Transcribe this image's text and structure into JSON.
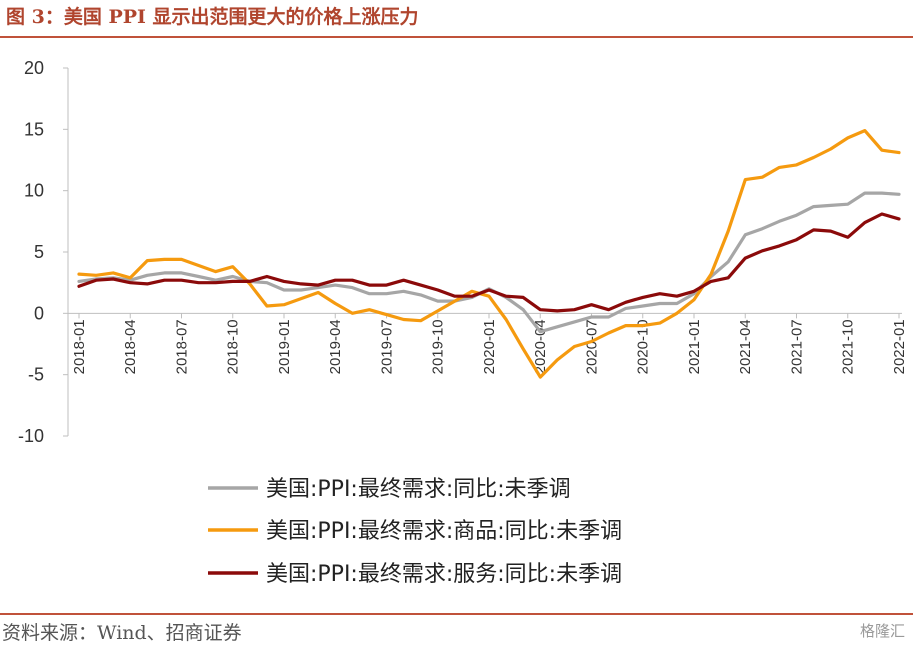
{
  "figure": {
    "title": "图 3：美国 PPI 显示出范围更大的价格上涨压力",
    "source": "资料来源：Wind、招商证券",
    "watermark": "格隆汇"
  },
  "colors": {
    "accent": "#c0523a",
    "series": [
      "#a6a6a6",
      "#f59a0f",
      "#8b0a0a"
    ]
  },
  "chart_data": {
    "type": "line",
    "x": [
      "2018-01",
      "2018-02",
      "2018-03",
      "2018-04",
      "2018-05",
      "2018-06",
      "2018-07",
      "2018-08",
      "2018-09",
      "2018-10",
      "2018-11",
      "2018-12",
      "2019-01",
      "2019-02",
      "2019-03",
      "2019-04",
      "2019-05",
      "2019-06",
      "2019-07",
      "2019-08",
      "2019-09",
      "2019-10",
      "2019-11",
      "2019-12",
      "2020-01",
      "2020-02",
      "2020-03",
      "2020-04",
      "2020-05",
      "2020-06",
      "2020-07",
      "2020-08",
      "2020-09",
      "2020-10",
      "2020-11",
      "2020-12",
      "2021-01",
      "2021-02",
      "2021-03",
      "2021-04",
      "2021-05",
      "2021-06",
      "2021-07",
      "2021-08",
      "2021-09",
      "2021-10",
      "2021-11",
      "2021-12",
      "2022-01"
    ],
    "x_tick_labels": [
      "2018-01",
      "2018-04",
      "2018-07",
      "2018-10",
      "2019-01",
      "2019-04",
      "2019-07",
      "2019-10",
      "2020-01",
      "2020-04",
      "2020-07",
      "2020-10",
      "2021-01",
      "2021-04",
      "2021-07",
      "2021-10",
      "2022-01"
    ],
    "ylim": [
      -10,
      20
    ],
    "y_ticks": [
      -10,
      -5,
      0,
      5,
      10,
      15,
      20
    ],
    "grid": false,
    "legend_position": "bottom",
    "series": [
      {
        "name": "美国:PPI:最终需求:同比:未季调",
        "values": [
          2.6,
          2.8,
          2.9,
          2.7,
          3.1,
          3.3,
          3.3,
          3.0,
          2.7,
          3.0,
          2.6,
          2.5,
          1.9,
          1.9,
          2.1,
          2.3,
          2.1,
          1.6,
          1.6,
          1.8,
          1.5,
          1.0,
          1.0,
          1.3,
          2.0,
          1.3,
          0.3,
          -1.5,
          -1.1,
          -0.7,
          -0.3,
          -0.3,
          0.4,
          0.6,
          0.8,
          0.8,
          1.6,
          3.0,
          4.2,
          6.4,
          6.9,
          7.5,
          8.0,
          8.7,
          8.8,
          8.9,
          9.8,
          9.8,
          9.7
        ]
      },
      {
        "name": "美国:PPI:最终需求:商品:同比:未季调",
        "values": [
          3.2,
          3.1,
          3.3,
          2.9,
          4.3,
          4.4,
          4.4,
          3.9,
          3.4,
          3.8,
          2.4,
          0.6,
          0.7,
          1.2,
          1.7,
          0.8,
          0.0,
          0.3,
          -0.1,
          -0.5,
          -0.6,
          0.2,
          1.0,
          1.8,
          1.4,
          -0.5,
          -2.9,
          -5.2,
          -3.8,
          -2.7,
          -2.3,
          -1.6,
          -1.0,
          -1.0,
          -0.8,
          0.0,
          1.1,
          3.2,
          6.7,
          10.9,
          11.1,
          11.9,
          12.1,
          12.7,
          13.4,
          14.3,
          14.9,
          13.3,
          13.1
        ]
      },
      {
        "name": "美国:PPI:最终需求:服务:同比:未季调",
        "values": [
          2.2,
          2.7,
          2.8,
          2.5,
          2.4,
          2.7,
          2.7,
          2.5,
          2.5,
          2.6,
          2.6,
          3.0,
          2.6,
          2.4,
          2.3,
          2.7,
          2.7,
          2.3,
          2.3,
          2.7,
          2.3,
          1.9,
          1.4,
          1.4,
          1.9,
          1.4,
          1.3,
          0.3,
          0.2,
          0.3,
          0.7,
          0.3,
          0.9,
          1.3,
          1.6,
          1.4,
          1.8,
          2.6,
          2.9,
          4.5,
          5.1,
          5.5,
          6.0,
          6.8,
          6.7,
          6.2,
          7.4,
          8.1,
          7.7
        ]
      }
    ]
  }
}
